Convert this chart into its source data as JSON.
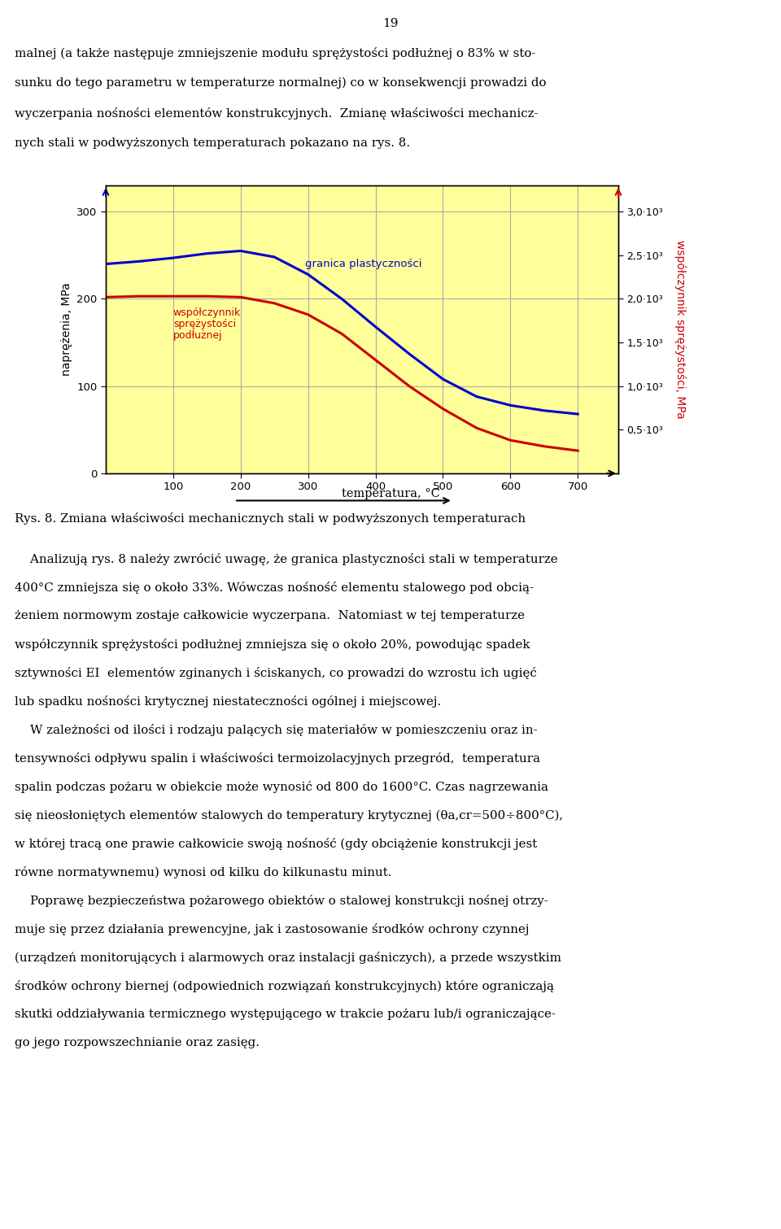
{
  "page_number": "19",
  "chart_bg": "#FFFF99",
  "blue_color": "#0000CC",
  "red_color": "#CC0000",
  "grid_color": "#AAAAAA",
  "left_ylabel": "naprężenia, MPa",
  "right_ylabel": "współczynnik sprężystości, MPa",
  "xlabel": "temperatura, °C",
  "blue_label": "granica plastyczności",
  "red_label_line1": "współczynnik",
  "red_label_line2": "sprężystości",
  "red_label_line3": "podłużnej",
  "right_tick_labels": [
    "0,5·10³",
    "1,0·10³",
    "1,5·10³",
    "2,0·10³",
    "2,5·10³",
    "3,0·10³"
  ],
  "T_blue": [
    0,
    50,
    100,
    150,
    200,
    250,
    300,
    350,
    400,
    450,
    500,
    550,
    600,
    650,
    700
  ],
  "Y_blue": [
    240,
    243,
    247,
    252,
    255,
    248,
    228,
    200,
    168,
    137,
    108,
    88,
    78,
    72,
    68
  ],
  "T_red": [
    0,
    50,
    100,
    150,
    200,
    250,
    300,
    350,
    400,
    450,
    500,
    550,
    600,
    650,
    700
  ],
  "Y_red": [
    202,
    203,
    203,
    203,
    202,
    195,
    182,
    160,
    130,
    100,
    74,
    52,
    38,
    31,
    26
  ],
  "intro_lines": [
    "malnej (a także następuje zmniejszenie modułu sprężystości podłużnej o 83% w sto-",
    "sunku do tego parametru w temperaturze normalnej) co w konsekwencji prowadzi do",
    "wyczerpania nośności elementów konstrukcyjnych.  Zmianę właściwości mechanicz-",
    "nych stali w podwyższonych temperaturach pokazano na rys. 8."
  ],
  "caption": "Rys. 8. Zmiana właściwości mechanicznych stali w podwyższonych temperaturach",
  "body_lines": [
    "    Analizują rys. 8 należy zwrócić uwagę, że granica plastyczności stali w temperaturze",
    "400°C zmniejsza się o około 33%. Wówczas nośność elementu stalowego pod obcią-",
    "żeniem normowym zostaje całkowicie wyczerpana.  Natomiast w tej temperaturze",
    "współczynnik sprężystości podłużnej zmniejsza się o około 20%, powodując spadek",
    "sztywności EI  elementów zginanych i ściskanych, co prowadzi do wzrostu ich ugięć",
    "lub spadku nośności krytycznej niestateczności ogólnej i miejscowej.",
    "    W zależności od ilości i rodzaju palących się materiałów w pomieszczeniu oraz in-",
    "tensywności odpływu spalin i właściwości termoizolacyjnych przegród,  temperatura",
    "spalin podczas pożaru w obiekcie może wynosić od 800 do 1600°C. Czas nagrzewania",
    "się nieosłoniętych elementów stalowych do temperatury krytycznej (θa,cr=500÷800°C),",
    "w której tracą one prawie całkowicie swoją nośność (gdy obciążenie konstrukcji jest",
    "równe normatywnemu) wynosi od kilku do kilkunastu minut.",
    "    Poprawę bezpieczeństwa pożarowego obiektów o stalowej konstrukcji nośnej otrzy-",
    "muje się przez działania prewencyjne, jak i zastosowanie środków ochrony czynnej",
    "(urządzeń monitorujących i alarmowych oraz instalacji gaśniczych), a przede wszystkim",
    "środków ochrony biernej (odpowiednich rozwiązań konstrukcyjnych) które ograniczają",
    "skutki oddziaływania termicznego występującego w trakcie pożaru lub/i ograniczające-",
    "go jego rozpowszechnianie oraz zasięg."
  ]
}
